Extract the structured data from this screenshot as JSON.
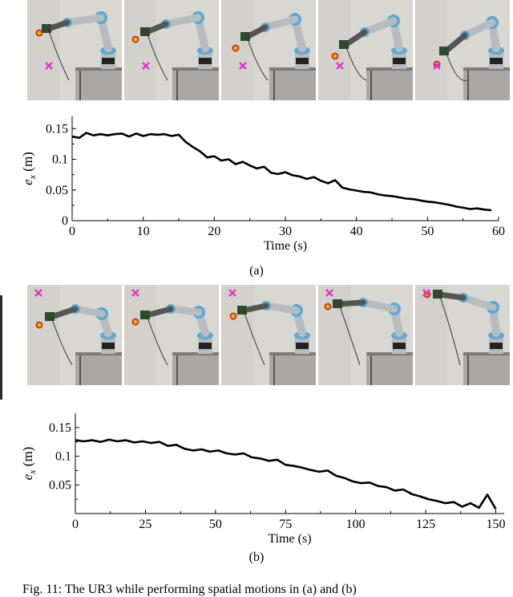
{
  "figure": {
    "caption": "Fig. 11: The UR3 while performing spatial motions in (a) and (b)",
    "panel_a_label": "(a)",
    "panel_b_label": "(b)"
  },
  "colors": {
    "target_marker": "#e533c9",
    "effector_marker": "#e6b800",
    "effector_ring": "#d01818",
    "line": "#000000",
    "wall": "#d9d7d2",
    "robot_body": "#b9bcbf",
    "robot_joint": "#5aa9d6"
  },
  "icons": {
    "target": "x-mark-icon",
    "effector": "dot-marker-icon"
  },
  "chart_data": [
    {
      "type": "line",
      "title": "",
      "xlabel": "Time (s)",
      "ylabel": "e_x (m)",
      "ylabel_main": "e",
      "ylabel_sub": "x",
      "ylabel_unit": " (m)",
      "xlim": [
        0,
        60
      ],
      "ylim": [
        0,
        0.17
      ],
      "xticks": [
        0,
        10,
        20,
        30,
        40,
        50,
        60
      ],
      "xtick_labels": [
        "0",
        "10",
        "20",
        "30",
        "40",
        "50",
        "60"
      ],
      "yticks": [
        0,
        0.05,
        0.1,
        0.15
      ],
      "ytick_labels": [
        "0",
        "0.05",
        "0.1",
        "0.15"
      ],
      "grid": false,
      "series": [
        {
          "x": [
            0,
            1,
            2,
            3,
            4,
            5,
            6,
            7,
            8,
            9,
            10,
            11,
            12,
            13,
            14,
            15,
            16,
            17,
            18,
            19,
            20,
            21,
            22,
            23,
            24,
            25,
            26,
            27,
            28,
            29,
            30,
            31,
            32,
            33,
            34,
            35,
            36,
            37,
            38,
            39,
            40,
            41,
            42,
            43,
            44,
            45,
            46,
            47,
            48,
            49,
            50,
            51,
            52,
            53,
            54,
            55,
            56,
            57,
            58,
            59
          ],
          "y": [
            0.137,
            0.135,
            0.143,
            0.139,
            0.141,
            0.139,
            0.141,
            0.142,
            0.137,
            0.142,
            0.138,
            0.141,
            0.14,
            0.141,
            0.138,
            0.14,
            0.128,
            0.12,
            0.113,
            0.103,
            0.105,
            0.098,
            0.1,
            0.092,
            0.096,
            0.09,
            0.085,
            0.088,
            0.078,
            0.076,
            0.079,
            0.074,
            0.072,
            0.068,
            0.071,
            0.065,
            0.061,
            0.066,
            0.054,
            0.051,
            0.049,
            0.047,
            0.046,
            0.043,
            0.041,
            0.04,
            0.038,
            0.036,
            0.035,
            0.033,
            0.031,
            0.03,
            0.028,
            0.026,
            0.023,
            0.021,
            0.019,
            0.02,
            0.018,
            0.017
          ]
        }
      ]
    },
    {
      "type": "line",
      "title": "",
      "xlabel": "Time (s)",
      "ylabel": "e_x (m)",
      "ylabel_main": "e",
      "ylabel_sub": "x",
      "ylabel_unit": " (m)",
      "xlim": [
        0,
        153
      ],
      "ylim": [
        0,
        0.175
      ],
      "xticks": [
        0,
        25,
        50,
        75,
        100,
        125,
        150
      ],
      "xtick_labels": [
        "0",
        "25",
        "50",
        "75",
        "100",
        "125",
        "150"
      ],
      "yticks": [
        0.05,
        0.1,
        0.15
      ],
      "ytick_labels": [
        "0.05",
        "0.1",
        "0.15"
      ],
      "grid": false,
      "series": [
        {
          "x": [
            0,
            3,
            6,
            9,
            12,
            15,
            18,
            21,
            24,
            27,
            30,
            33,
            36,
            39,
            42,
            45,
            48,
            51,
            54,
            57,
            60,
            63,
            66,
            69,
            72,
            75,
            78,
            81,
            84,
            87,
            90,
            93,
            96,
            99,
            102,
            105,
            108,
            111,
            114,
            117,
            120,
            123,
            126,
            129,
            132,
            135,
            138,
            141,
            144,
            147,
            150
          ],
          "y": [
            0.128,
            0.126,
            0.128,
            0.125,
            0.129,
            0.126,
            0.128,
            0.124,
            0.126,
            0.123,
            0.125,
            0.118,
            0.12,
            0.113,
            0.11,
            0.112,
            0.108,
            0.11,
            0.105,
            0.103,
            0.105,
            0.098,
            0.096,
            0.092,
            0.094,
            0.085,
            0.083,
            0.08,
            0.076,
            0.073,
            0.075,
            0.066,
            0.062,
            0.056,
            0.053,
            0.054,
            0.048,
            0.046,
            0.04,
            0.042,
            0.034,
            0.03,
            0.025,
            0.022,
            0.018,
            0.02,
            0.012,
            0.018,
            0.01,
            0.033,
            0.008
          ]
        }
      ]
    }
  ]
}
